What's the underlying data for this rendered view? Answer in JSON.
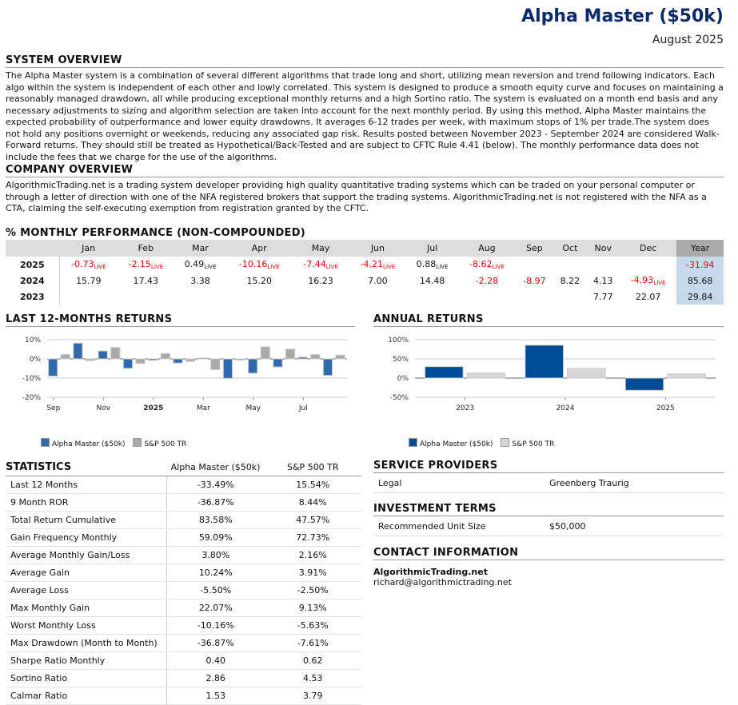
{
  "header": {
    "title": "Alpha Master ($50k)",
    "date": "August 2025"
  },
  "system_overview": {
    "heading": "SYSTEM OVERVIEW",
    "text": "The Alpha Master system is a combination of several different algorithms that trade long and short, utilizing mean reversion and trend following indicators. Each algo within the system is independent of each other and lowly correlated. This system is designed to produce a smooth equity curve and focuses on maintaining a reasonably managed drawdown, all while producing exceptional monthly returns and a high Sortino ratio. The system is evaluated on a month end basis and any necessary adjustments to sizing and algorithm selection are taken into account for the next monthly period. By using this method, Alpha Master maintains the expected probability of outperformance and lower equity drawdowns. It averages 6-12 trades per week, with maximum stops of 1% per trade.The system does not hold any positions overnight or weekends, reducing any associated gap risk. Results posted between November 2023 - September 2024 are considered Walk-Forward returns. They should still be treated as Hypothetical/Back-Tested and are subject to CFTC Rule 4.41 (below). The monthly performance data does not include the fees that we charge for the use of the algorithms."
  },
  "company_overview": {
    "heading": "COMPANY OVERVIEW",
    "text": "AlgorithmicTrading.net is a trading system developer providing high quality quantitative trading systems which can be traded on your personal computer or through a letter of direction with one of the NFA registered brokers that support the trading systems. AlgorithmicTrading.net is not registered with the NFA as a CTA, claiming the self-executing exemption from registration granted by the CFTC."
  },
  "monthly": {
    "heading": "% MONTHLY PERFORMANCE (NON-COMPOUNDED)",
    "live_label": "LIVE",
    "columns": [
      "Jan",
      "Feb",
      "Mar",
      "Apr",
      "May",
      "Jun",
      "Jul",
      "Aug",
      "Sep",
      "Oct",
      "Nov",
      "Dec",
      "Year"
    ],
    "rows": [
      {
        "year": "2025",
        "values": [
          "-0.73",
          "-2.15",
          "0.49",
          "-10.16",
          "-7.44",
          "-4.21",
          "0.88",
          "-8.62",
          "",
          "",
          "",
          ""
        ],
        "live": [
          1,
          1,
          1,
          1,
          1,
          1,
          1,
          1,
          0,
          0,
          0,
          0
        ],
        "total": "-31.94"
      },
      {
        "year": "2024",
        "values": [
          "15.79",
          "17.43",
          "3.38",
          "15.20",
          "16.23",
          "7.00",
          "14.48",
          "-2.28",
          "-8.97",
          "8.22",
          "4.13",
          "-4.93"
        ],
        "live": [
          0,
          0,
          0,
          0,
          0,
          0,
          0,
          0,
          0,
          0,
          0,
          1
        ],
        "total": "85.68"
      },
      {
        "year": "2023",
        "values": [
          "",
          "",
          "",
          "",
          "",
          "",
          "",
          "",
          "",
          "",
          "7.77",
          "22.07"
        ],
        "live": [
          0,
          0,
          0,
          0,
          0,
          0,
          0,
          0,
          0,
          0,
          0,
          0
        ],
        "total": "29.84"
      }
    ]
  },
  "colors": {
    "alpha": "#2e6aad",
    "alpha_annual": "#004c97",
    "sp": "#aaaaaa",
    "sp_annual": "#d6d6d6",
    "negative": "#ee0000",
    "title": "#0a2a6b"
  },
  "chart_data": [
    {
      "type": "bar",
      "title": "LAST 12-MONTHS RETURNS",
      "categories": [
        "Sep",
        "Oct",
        "Nov",
        "Dec",
        "2025",
        "Feb",
        "Mar",
        "Apr",
        "May",
        "Jun",
        "Jul",
        "Aug"
      ],
      "tick_labels": [
        "Sep",
        "Nov",
        "2025",
        "Mar",
        "May",
        "Jul"
      ],
      "ylim": [
        -20,
        10
      ],
      "yticks": [
        "10%",
        "0%",
        "-10%",
        "-20%"
      ],
      "grid": true,
      "legend": "bottom-left",
      "series": [
        {
          "name": "Alpha Master ($50k)",
          "values": [
            -8.97,
            8.22,
            4.13,
            -4.93,
            -0.73,
            -2.15,
            0.49,
            -10.16,
            -7.44,
            -4.21,
            0.88,
            -8.62
          ]
        },
        {
          "name": "S&P 500 TR",
          "values": [
            2.3,
            -0.9,
            6.0,
            -2.4,
            2.8,
            -1.3,
            -5.6,
            -0.7,
            6.3,
            5.1,
            2.3,
            2.0
          ]
        }
      ]
    },
    {
      "type": "bar",
      "title": "ANNUAL RETURNS",
      "categories": [
        "2023",
        "2024",
        "2025"
      ],
      "ylim": [
        -50,
        100
      ],
      "yticks": [
        "100%",
        "50%",
        "0%",
        "-50%"
      ],
      "grid": true,
      "legend": "bottom-left",
      "series": [
        {
          "name": "Alpha Master ($50k)",
          "values": [
            29.84,
            85.68,
            -31.94
          ]
        },
        {
          "name": "S&P 500 TR",
          "values": [
            13,
            25,
            11
          ]
        }
      ]
    }
  ],
  "statistics": {
    "heading": "STATISTICS",
    "col1": "Alpha Master ($50k)",
    "col2": "S&P 500 TR",
    "rows": [
      [
        "Last 12 Months",
        "-33.49%",
        "15.54%"
      ],
      [
        "9 Month ROR",
        "-36.87%",
        "8.44%"
      ],
      [
        "Total Return Cumulative",
        "83.58%",
        "47.57%"
      ],
      [
        "Gain Frequency Monthly",
        "59.09%",
        "72.73%"
      ],
      [
        "Average Monthly Gain/Loss",
        "3.80%",
        "2.16%"
      ],
      [
        "Average Gain",
        "10.24%",
        "3.91%"
      ],
      [
        "Average Loss",
        "-5.50%",
        "-2.50%"
      ],
      [
        "Max Monthly Gain",
        "22.07%",
        "9.13%"
      ],
      [
        "Worst Monthly Loss",
        "-10.16%",
        "-5.63%"
      ],
      [
        "Max Drawdown (Month to Month)",
        "-36.87%",
        "-7.61%"
      ],
      [
        "Sharpe Ratio Monthly",
        "0.40",
        "0.62"
      ],
      [
        "Sortino Ratio",
        "2.86",
        "4.53"
      ],
      [
        "Calmar Ratio",
        "1.53",
        "3.79"
      ]
    ]
  },
  "service": {
    "heading": "SERVICE PROVIDERS",
    "label": "Legal",
    "value": "Greenberg Traurig"
  },
  "investment": {
    "heading": "INVESTMENT TERMS",
    "label": "Recommended Unit Size",
    "value": "$50,000"
  },
  "contact": {
    "heading": "CONTACT INFORMATION",
    "company": "AlgorithmicTrading.net",
    "email": "richard@algorithmictrading.net"
  }
}
